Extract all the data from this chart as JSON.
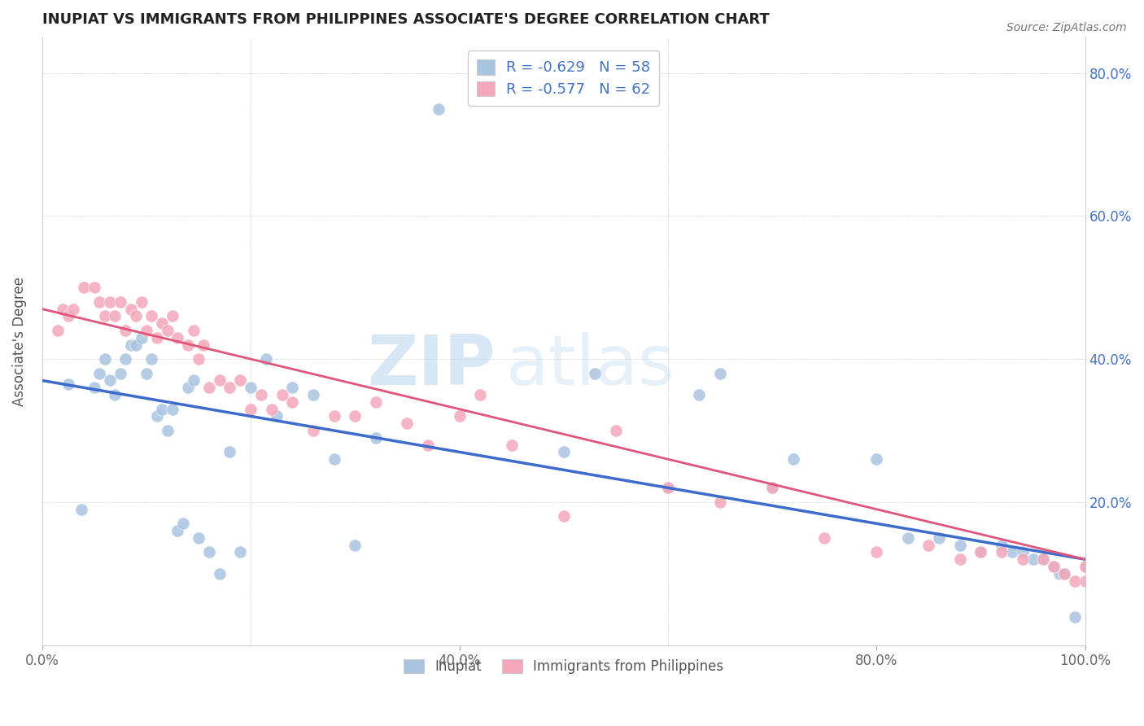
{
  "title": "INUPIAT VS IMMIGRANTS FROM PHILIPPINES ASSOCIATE'S DEGREE CORRELATION CHART",
  "source": "Source: ZipAtlas.com",
  "ylabel": "Associate's Degree",
  "xlabel": "",
  "xlim": [
    0.0,
    1.0
  ],
  "ylim": [
    0.0,
    0.85
  ],
  "xticks": [
    0.0,
    0.2,
    0.4,
    0.6,
    0.8,
    1.0
  ],
  "xticklabels": [
    "0.0%",
    "",
    "40.0%",
    "",
    "80.0%",
    "100.0%"
  ],
  "yticks": [
    0.0,
    0.2,
    0.4,
    0.6,
    0.8
  ],
  "yticklabels": [
    "",
    "20.0%",
    "40.0%",
    "60.0%",
    "80.0%"
  ],
  "legend1_label": "R = -0.629   N = 58",
  "legend2_label": "R = -0.577   N = 62",
  "legend_label_inupiat": "Inupiat",
  "legend_label_phil": "Immigrants from Philippines",
  "color_inupiat": "#a8c4e0",
  "color_phil": "#f4a7b9",
  "color_line_inupiat": "#3d6bcc",
  "color_line_phil": "#e0567a",
  "color_legend_text": "#4472c4",
  "inupiat_x": [
    0.025,
    0.038,
    0.05,
    0.055,
    0.06,
    0.065,
    0.07,
    0.075,
    0.08,
    0.085,
    0.09,
    0.095,
    0.1,
    0.105,
    0.11,
    0.115,
    0.12,
    0.125,
    0.13,
    0.135,
    0.14,
    0.145,
    0.15,
    0.16,
    0.17,
    0.18,
    0.19,
    0.2,
    0.215,
    0.225,
    0.24,
    0.26,
    0.28,
    0.3,
    0.32,
    0.38,
    0.5,
    0.53,
    0.6,
    0.63,
    0.65,
    0.7,
    0.72,
    0.8,
    0.83,
    0.86,
    0.88,
    0.9,
    0.92,
    0.93,
    0.94,
    0.95,
    0.96,
    0.97,
    0.975,
    0.98,
    0.99,
    1.0
  ],
  "inupiat_y": [
    0.365,
    0.19,
    0.36,
    0.38,
    0.4,
    0.37,
    0.35,
    0.38,
    0.4,
    0.42,
    0.42,
    0.43,
    0.38,
    0.4,
    0.32,
    0.33,
    0.3,
    0.33,
    0.16,
    0.17,
    0.36,
    0.37,
    0.15,
    0.13,
    0.1,
    0.27,
    0.13,
    0.36,
    0.4,
    0.32,
    0.36,
    0.35,
    0.26,
    0.14,
    0.29,
    0.75,
    0.27,
    0.38,
    0.22,
    0.35,
    0.38,
    0.22,
    0.26,
    0.26,
    0.15,
    0.15,
    0.14,
    0.13,
    0.14,
    0.13,
    0.13,
    0.12,
    0.12,
    0.11,
    0.1,
    0.1,
    0.04,
    0.11
  ],
  "phil_x": [
    0.015,
    0.02,
    0.025,
    0.03,
    0.04,
    0.05,
    0.055,
    0.06,
    0.065,
    0.07,
    0.075,
    0.08,
    0.085,
    0.09,
    0.095,
    0.1,
    0.105,
    0.11,
    0.115,
    0.12,
    0.125,
    0.13,
    0.14,
    0.145,
    0.15,
    0.155,
    0.16,
    0.17,
    0.18,
    0.19,
    0.2,
    0.21,
    0.22,
    0.23,
    0.24,
    0.26,
    0.28,
    0.3,
    0.32,
    0.35,
    0.37,
    0.4,
    0.42,
    0.45,
    0.5,
    0.55,
    0.6,
    0.65,
    0.7,
    0.75,
    0.8,
    0.85,
    0.88,
    0.9,
    0.92,
    0.94,
    0.96,
    0.97,
    0.98,
    0.99,
    1.0,
    1.0
  ],
  "phil_y": [
    0.44,
    0.47,
    0.46,
    0.47,
    0.5,
    0.5,
    0.48,
    0.46,
    0.48,
    0.46,
    0.48,
    0.44,
    0.47,
    0.46,
    0.48,
    0.44,
    0.46,
    0.43,
    0.45,
    0.44,
    0.46,
    0.43,
    0.42,
    0.44,
    0.4,
    0.42,
    0.36,
    0.37,
    0.36,
    0.37,
    0.33,
    0.35,
    0.33,
    0.35,
    0.34,
    0.3,
    0.32,
    0.32,
    0.34,
    0.31,
    0.28,
    0.32,
    0.35,
    0.28,
    0.18,
    0.3,
    0.22,
    0.2,
    0.22,
    0.15,
    0.13,
    0.14,
    0.12,
    0.13,
    0.13,
    0.12,
    0.12,
    0.11,
    0.1,
    0.09,
    0.09,
    0.11
  ],
  "line_inupiat_x0": 0.0,
  "line_inupiat_y0": 0.37,
  "line_inupiat_x1": 1.0,
  "line_inupiat_y1": 0.12,
  "line_phil_x0": 0.0,
  "line_phil_y0": 0.47,
  "line_phil_x1": 1.0,
  "line_phil_y1": 0.12
}
